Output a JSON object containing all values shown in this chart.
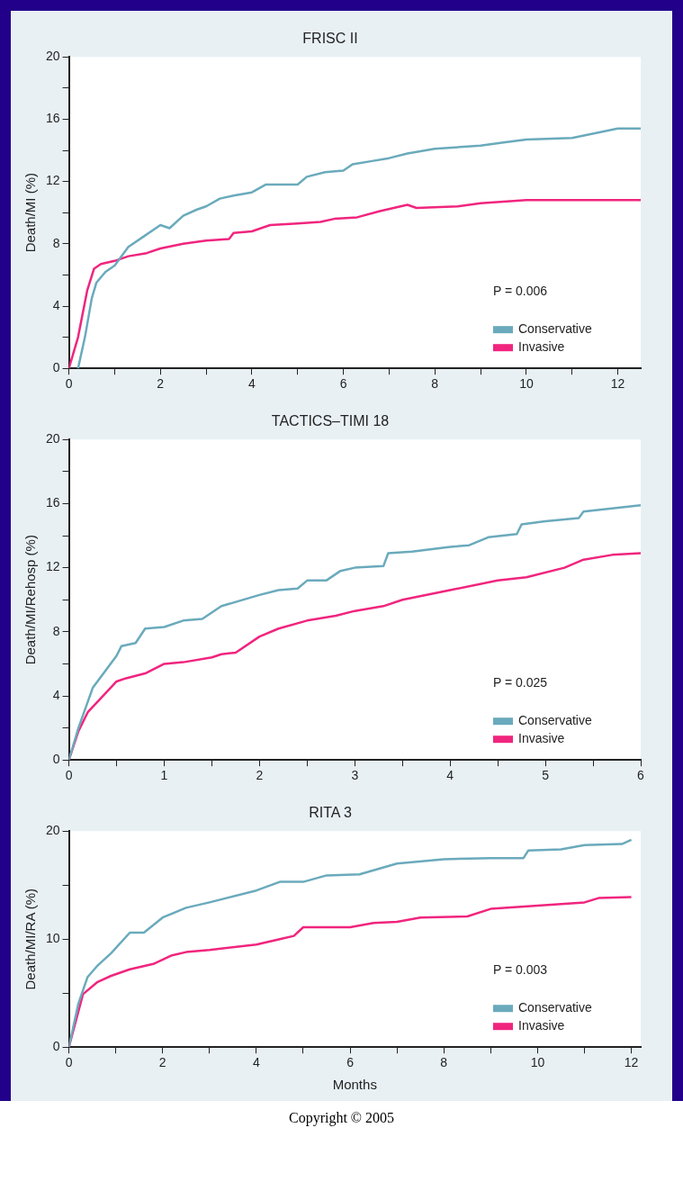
{
  "chart_data": [
    {
      "type": "line",
      "title": "FRISC II",
      "ylabel": "Death/MI (%)",
      "xlim": [
        0,
        12.5
      ],
      "xticks": [
        0,
        {
          "value": 1,
          "label": null
        },
        2,
        {
          "value": 3,
          "label": null
        },
        4,
        {
          "value": 5,
          "label": null
        },
        6,
        {
          "value": 7,
          "label": null
        },
        8,
        {
          "value": 9,
          "label": null
        },
        10,
        {
          "value": 11,
          "label": null
        },
        12
      ],
      "ylim": [
        0,
        20
      ],
      "yticks": [
        0,
        {
          "value": 2,
          "label": null
        },
        4,
        {
          "value": 6,
          "label": null
        },
        8,
        {
          "value": 10,
          "label": null
        },
        12,
        {
          "value": 14,
          "label": null
        },
        16,
        {
          "value": 18,
          "label": null
        },
        20
      ],
      "legend": "bottom right",
      "annotations": [
        "P = 0.006"
      ],
      "series": [
        {
          "name": "Conservative",
          "color": "#6aaabc",
          "x": [
            0.2,
            0.35,
            0.5,
            0.6,
            0.8,
            1.0,
            1.3,
            1.6,
            2,
            2.2,
            2.5,
            2.8,
            3,
            3.3,
            3.6,
            4,
            4.3,
            4.7,
            5,
            5.2,
            5.6,
            6,
            6.2,
            6.6,
            7,
            7.4,
            8,
            9,
            9.5,
            10,
            11,
            11.5,
            12,
            12.5
          ],
          "values": [
            0,
            2,
            4.5,
            5.5,
            6.2,
            6.6,
            7.8,
            8.4,
            9.2,
            9.0,
            9.8,
            10.2,
            10.4,
            10.9,
            11.1,
            11.3,
            11.8,
            11.8,
            11.8,
            12.3,
            12.6,
            12.7,
            13.1,
            13.3,
            13.5,
            13.8,
            14.1,
            14.3,
            14.5,
            14.7,
            14.8,
            15.1,
            15.4,
            15.4
          ]
        },
        {
          "name": "Invasive",
          "color": "#f0257e",
          "x": [
            0,
            0.2,
            0.4,
            0.55,
            0.7,
            1,
            1.3,
            1.7,
            2,
            2.5,
            3,
            3.5,
            3.6,
            4,
            4.4,
            5,
            5.5,
            5.8,
            6.3,
            6.8,
            7.4,
            7.6,
            8.5,
            9,
            10,
            12.5
          ],
          "values": [
            0,
            2,
            5,
            6.4,
            6.7,
            6.9,
            7.2,
            7.4,
            7.7,
            8,
            8.2,
            8.3,
            8.7,
            8.8,
            9.2,
            9.3,
            9.4,
            9.6,
            9.7,
            10.1,
            10.5,
            10.3,
            10.4,
            10.6,
            10.8,
            10.8
          ]
        }
      ]
    },
    {
      "type": "line",
      "title": "TACTICS–TIMI 18",
      "ylabel": "Death/MI/Rehosp (%)",
      "xlim": [
        0,
        6
      ],
      "xticks": [
        0,
        {
          "value": 0.5,
          "label": null
        },
        1,
        {
          "value": 1.5,
          "label": null
        },
        2,
        {
          "value": 2.5,
          "label": null
        },
        3,
        {
          "value": 3.5,
          "label": null
        },
        4,
        {
          "value": 4.5,
          "label": null
        },
        5,
        {
          "value": 5.5,
          "label": null
        },
        6
      ],
      "ylim": [
        0,
        20
      ],
      "yticks": [
        0,
        {
          "value": 2,
          "label": null
        },
        4,
        {
          "value": 6,
          "label": null
        },
        8,
        {
          "value": 10,
          "label": null
        },
        12,
        {
          "value": 14,
          "label": null
        },
        16,
        {
          "value": 18,
          "label": null
        },
        20
      ],
      "legend": "bottom right",
      "annotations": [
        "P = 0.025"
      ],
      "series": [
        {
          "name": "Conservative",
          "color": "#6aaabc",
          "x": [
            0,
            0.1,
            0.25,
            0.5,
            0.55,
            0.7,
            0.8,
            1,
            1.2,
            1.4,
            1.6,
            2,
            2.2,
            2.4,
            2.5,
            2.7,
            2.85,
            3,
            3.3,
            3.35,
            3.6,
            4,
            4.2,
            4.4,
            4.7,
            4.75,
            5,
            5.35,
            5.4,
            6
          ],
          "values": [
            0,
            2,
            4.5,
            6.5,
            7.1,
            7.3,
            8.2,
            8.3,
            8.7,
            8.8,
            9.6,
            10.3,
            10.6,
            10.7,
            11.2,
            11.2,
            11.8,
            12,
            12.1,
            12.9,
            13,
            13.3,
            13.4,
            13.9,
            14.1,
            14.7,
            14.9,
            15.1,
            15.5,
            15.9
          ]
        },
        {
          "name": "Invasive",
          "color": "#f0257e",
          "x": [
            0,
            0.1,
            0.2,
            0.5,
            0.6,
            0.8,
            1,
            1.2,
            1.5,
            1.6,
            1.75,
            2,
            2.2,
            2.5,
            2.8,
            3,
            3.3,
            3.5,
            4,
            4.5,
            4.8,
            5.2,
            5.4,
            5.7,
            6
          ],
          "values": [
            0,
            1.8,
            3,
            4.9,
            5.1,
            5.4,
            6,
            6.1,
            6.4,
            6.6,
            6.7,
            7.7,
            8.2,
            8.7,
            9,
            9.3,
            9.6,
            10,
            10.6,
            11.2,
            11.4,
            12,
            12.5,
            12.8,
            12.9
          ]
        }
      ]
    },
    {
      "type": "line",
      "title": "RITA 3",
      "ylabel": "Death/MI/RA (%)",
      "xlabel": "Months",
      "xlim": [
        0,
        12.2
      ],
      "xticks": [
        0,
        {
          "value": 1,
          "label": null
        },
        2,
        {
          "value": 3,
          "label": null
        },
        4,
        {
          "value": 5,
          "label": null
        },
        6,
        {
          "value": 7,
          "label": null
        },
        8,
        {
          "value": 9,
          "label": null
        },
        10,
        {
          "value": 11,
          "label": null
        },
        12
      ],
      "ylim": [
        0,
        20
      ],
      "yticks": [
        0,
        {
          "value": 5,
          "label": null
        },
        10,
        {
          "value": 15,
          "label": null
        },
        20
      ],
      "legend": "bottom right",
      "annotations": [
        "P = 0.003",
        "Copyright © 2005"
      ],
      "series": [
        {
          "name": "Conservative",
          "color": "#6aaabc",
          "x": [
            0,
            0.2,
            0.4,
            0.6,
            0.9,
            1.3,
            1.6,
            2,
            2.5,
            3,
            4,
            4.5,
            5,
            5.5,
            6.2,
            7,
            8,
            9,
            9.7,
            9.8,
            10.5,
            11,
            11.8,
            12
          ],
          "values": [
            0,
            4,
            6.5,
            7.5,
            8.7,
            10.6,
            10.6,
            12,
            12.9,
            13.4,
            14.5,
            15.3,
            15.3,
            15.9,
            16,
            17,
            17.4,
            17.5,
            17.5,
            18.2,
            18.3,
            18.7,
            18.8,
            19.2
          ]
        },
        {
          "name": "Invasive",
          "color": "#f0257e",
          "x": [
            0,
            0.3,
            0.6,
            0.9,
            1.3,
            1.8,
            2.2,
            2.5,
            3,
            4,
            4.5,
            4.8,
            5,
            6,
            6.5,
            7,
            7.5,
            8.5,
            9,
            10,
            11,
            11.3,
            12
          ],
          "values": [
            0,
            4.9,
            6,
            6.6,
            7.2,
            7.7,
            8.5,
            8.8,
            9,
            9.5,
            10,
            10.3,
            11.1,
            11.1,
            11.5,
            11.6,
            12,
            12.1,
            12.8,
            13.1,
            13.4,
            13.8,
            13.9
          ]
        }
      ]
    }
  ]
}
